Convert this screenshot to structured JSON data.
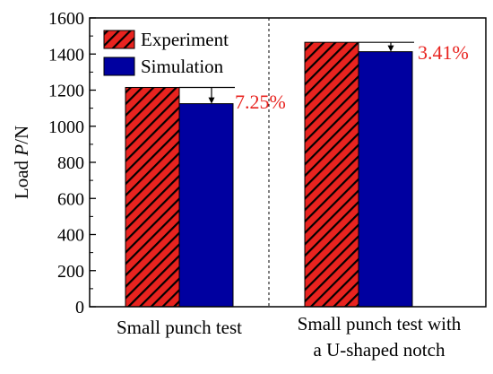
{
  "chart_data": {
    "type": "bar",
    "ylabel": "Load",
    "ylabel_italic": "P",
    "ylabel_unit": "/N",
    "ylim": [
      0,
      1600
    ],
    "yticks": [
      "0",
      "200",
      "400",
      "600",
      "800",
      "1000",
      "1200",
      "1400",
      "1600"
    ],
    "categories": [
      {
        "line1": "Small punch test",
        "line2": ""
      },
      {
        "line1": "Small punch test with",
        "line2": "a U-shaped notch"
      }
    ],
    "series": [
      {
        "name": "Experiment",
        "values": [
          1215,
          1465
        ],
        "color": "#e8231f",
        "pattern": "hatched"
      },
      {
        "name": "Simulation",
        "values": [
          1125,
          1413
        ],
        "color": "#0000a0",
        "pattern": "solid"
      }
    ],
    "annotations": [
      "7.25%",
      "3.41%"
    ],
    "annotation_color": "#e8231f",
    "legend_position": "top-left",
    "divider": "dashed vertical line between groups"
  }
}
